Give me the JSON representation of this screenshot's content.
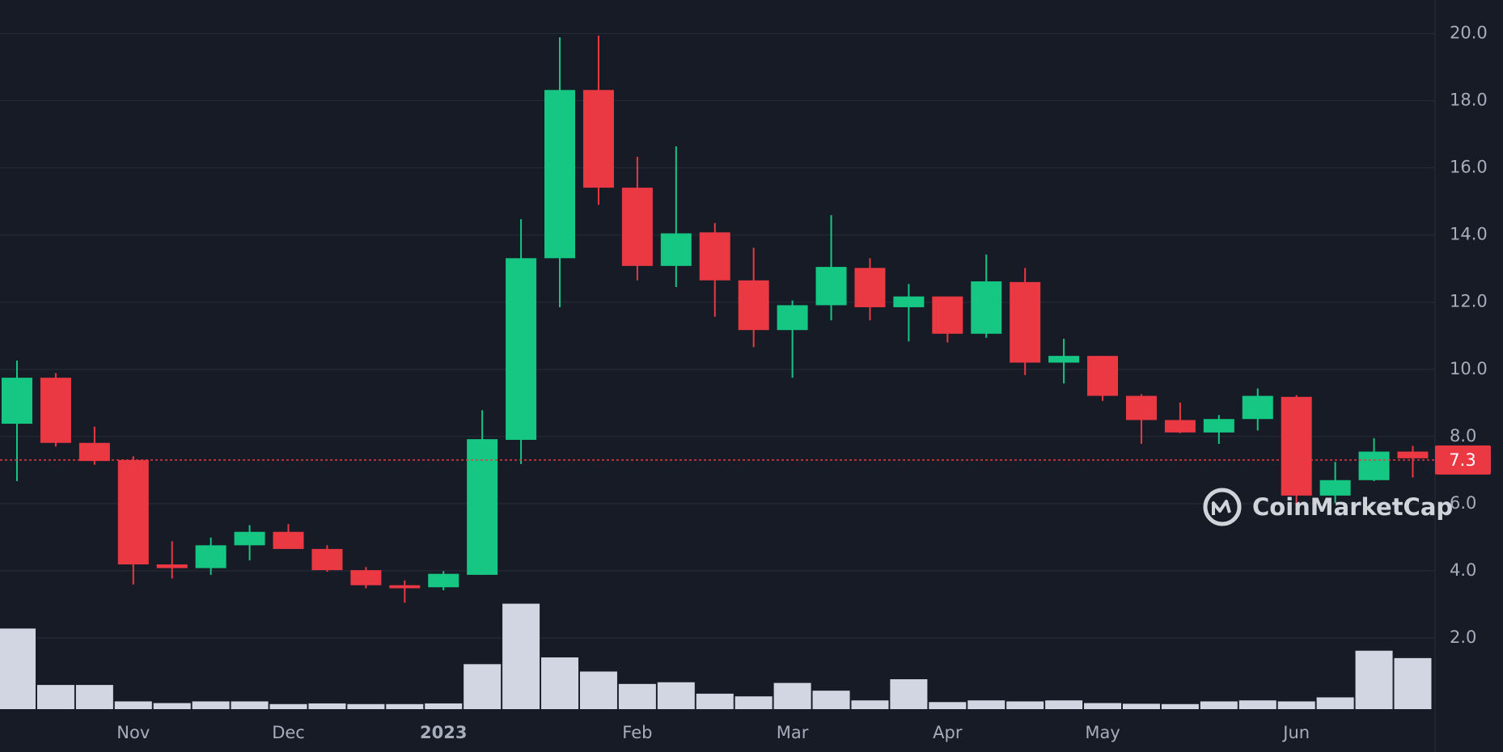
{
  "chart_data": {
    "type": "candlestick",
    "categories": [
      null,
      null,
      null,
      "Nov",
      null,
      null,
      null,
      "Dec",
      null,
      null,
      null,
      "2023",
      null,
      null,
      null,
      null,
      "Feb",
      null,
      null,
      null,
      "Mar",
      null,
      null,
      null,
      "Apr",
      null,
      null,
      null,
      "May",
      null,
      null,
      null,
      null,
      "Jun",
      null,
      null,
      null
    ],
    "open": [
      8.38,
      9.75,
      7.81,
      7.3,
      4.19,
      4.08,
      4.76,
      5.16,
      4.65,
      4.02,
      3.57,
      3.51,
      3.88,
      7.9,
      13.31,
      18.32,
      15.41,
      13.08,
      14.08,
      12.65,
      11.17,
      11.91,
      13.02,
      11.85,
      12.17,
      11.06,
      12.6,
      10.2,
      10.4,
      9.21,
      8.49,
      8.12,
      8.52,
      9.18,
      6.24,
      6.7,
      7.55
    ],
    "high": [
      10.26,
      9.89,
      8.29,
      7.41,
      4.88,
      4.99,
      5.36,
      5.39,
      4.76,
      4.11,
      3.71,
      3.99,
      8.78,
      14.47,
      19.89,
      19.94,
      16.33,
      16.64,
      14.36,
      13.62,
      12.05,
      14.59,
      13.31,
      12.54,
      12.17,
      13.42,
      13.02,
      10.91,
      10.4,
      9.26,
      9.01,
      8.64,
      9.43,
      9.23,
      7.24,
      7.95,
      7.72
    ],
    "low": [
      6.67,
      7.7,
      7.16,
      3.59,
      3.77,
      3.88,
      4.31,
      4.65,
      3.97,
      3.48,
      3.05,
      3.42,
      3.88,
      7.18,
      11.85,
      14.9,
      12.65,
      12.45,
      11.57,
      10.66,
      9.75,
      11.46,
      11.46,
      10.83,
      10.8,
      10.94,
      9.83,
      9.58,
      9.06,
      7.78,
      8.1,
      7.78,
      8.18,
      6.02,
      6.02,
      6.67,
      6.78
    ],
    "close": [
      9.75,
      7.81,
      7.27,
      4.19,
      4.08,
      4.76,
      5.16,
      4.65,
      4.02,
      3.57,
      3.48,
      3.91,
      7.92,
      13.31,
      18.32,
      15.41,
      13.08,
      14.05,
      12.65,
      11.17,
      11.91,
      13.05,
      11.85,
      12.17,
      11.06,
      12.62,
      10.2,
      10.4,
      9.21,
      8.49,
      8.12,
      8.52,
      9.21,
      6.24,
      6.7,
      7.55,
      7.35
    ],
    "volume": [
      2.28,
      0.6,
      0.6,
      0.11,
      0.06,
      0.11,
      0.11,
      0.03,
      0.05,
      0.03,
      0.03,
      0.05,
      1.22,
      3.02,
      1.42,
      1.0,
      0.63,
      0.68,
      0.34,
      0.26,
      0.66,
      0.43,
      0.14,
      0.77,
      0.09,
      0.14,
      0.11,
      0.14,
      0.06,
      0.04,
      0.03,
      0.11,
      0.14,
      0.11,
      0.23,
      1.62,
      1.4
    ],
    "up_color": "#16c784",
    "down_color": "#ea3943",
    "volume_color": "#d1d6e2",
    "ylim": [
      0,
      21
    ],
    "yticks": [
      {
        "value": 2,
        "label": "2.0"
      },
      {
        "value": 4,
        "label": "4.0"
      },
      {
        "value": 6,
        "label": "6.0"
      },
      {
        "value": 8,
        "label": "8.0"
      },
      {
        "value": 10,
        "label": "10.0"
      },
      {
        "value": 12,
        "label": "12.0"
      },
      {
        "value": 14,
        "label": "14.0"
      },
      {
        "value": 16,
        "label": "16.0"
      },
      {
        "value": 18,
        "label": "18.0"
      },
      {
        "value": 20,
        "label": "20.0"
      }
    ],
    "grid": true,
    "last_price": 7.3,
    "watermark": "CoinMarketCap"
  }
}
